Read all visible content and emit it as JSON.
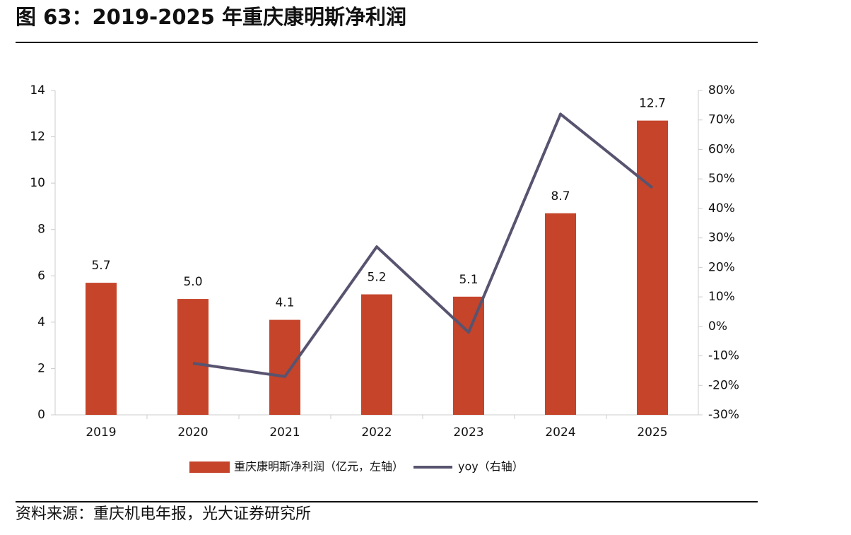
{
  "title": "图 63：2019-2025 年重庆康明斯净利润",
  "source": "资料来源：重庆机电年报，光大证券研究所",
  "chart_data": {
    "type": "bar",
    "categories": [
      "2019",
      "2020",
      "2021",
      "2022",
      "2023",
      "2024",
      "2025"
    ],
    "series": [
      {
        "name": "重庆康明斯净利润（亿元，左轴）",
        "type": "bar",
        "color": "#c5442a",
        "values": [
          5.7,
          5.0,
          4.1,
          5.2,
          5.1,
          8.7,
          12.7
        ],
        "value_labels": [
          "5.7",
          "5.0",
          "4.1",
          "5.2",
          "5.1",
          "8.7",
          "12.7"
        ]
      },
      {
        "name": "yoy（右轴）",
        "type": "line",
        "color": "#58536f",
        "axis": "y2",
        "values": [
          null,
          -12.5,
          -17,
          27,
          -2,
          72,
          47
        ]
      }
    ],
    "ylim": [
      0,
      14
    ],
    "yticks": [
      0,
      2,
      4,
      6,
      8,
      10,
      12,
      14
    ],
    "y2lim": [
      -30,
      80
    ],
    "y2ticks": [
      {
        "value": -30,
        "label": "-30%"
      },
      {
        "value": -20,
        "label": "-20%"
      },
      {
        "value": -10,
        "label": "-10%"
      },
      {
        "value": 0,
        "label": "0%"
      },
      {
        "value": 10,
        "label": "10%"
      },
      {
        "value": 20,
        "label": "20%"
      },
      {
        "value": 30,
        "label": "30%"
      },
      {
        "value": 40,
        "label": "40%"
      },
      {
        "value": 50,
        "label": "50%"
      },
      {
        "value": 60,
        "label": "60%"
      },
      {
        "value": 70,
        "label": "70%"
      },
      {
        "value": 80,
        "label": "80%"
      }
    ]
  }
}
